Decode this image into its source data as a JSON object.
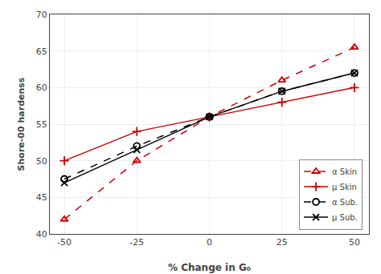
{
  "chart_data": {
    "type": "line",
    "xlabel": "% Change in G₀",
    "ylabel": "Shore-00 hardenss",
    "x": [
      -50,
      -25,
      0,
      25,
      50
    ],
    "series": [
      {
        "name": "α Skin",
        "color": "#cc0000",
        "marker": "triangle-open",
        "line_style": "dashed",
        "values": [
          42,
          50,
          56,
          61,
          65.5
        ]
      },
      {
        "name": "μ Skin",
        "color": "#cc0000",
        "marker": "plus",
        "line_style": "solid",
        "values": [
          50,
          54,
          56,
          58,
          60
        ]
      },
      {
        "name": "α Sub.",
        "color": "#000000",
        "marker": "circle-open",
        "line_style": "dashed",
        "values": [
          47.5,
          52,
          56,
          59.5,
          62
        ]
      },
      {
        "name": "μ Sub.",
        "color": "#000000",
        "marker": "x",
        "line_style": "solid",
        "values": [
          47,
          51.5,
          56,
          59.5,
          62
        ]
      }
    ],
    "xlim": [
      -55,
      55
    ],
    "ylim": [
      40,
      70
    ],
    "xticks": [
      -50,
      -25,
      0,
      25,
      50
    ],
    "yticks": [
      40,
      45,
      50,
      55,
      60,
      65,
      70
    ],
    "grid": true,
    "legend": "lower right"
  }
}
